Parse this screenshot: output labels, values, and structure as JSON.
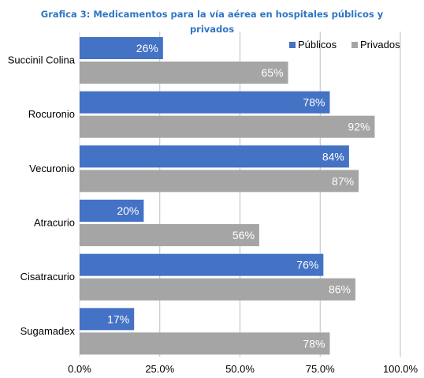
{
  "chart_data": {
    "type": "bar",
    "orientation": "horizontal",
    "title": "Grafica 3: Medicamentos  para la vía aérea en hospitales públicos y privados",
    "categories": [
      "Succinil Colina",
      "Rocuronio",
      "Vecuronio",
      "Atracurio",
      "Cisatracurio",
      "Sugamadex"
    ],
    "series": [
      {
        "name": "Públicos",
        "color": "#4472C4",
        "values": [
          26,
          78,
          84,
          20,
          76,
          17
        ],
        "labels": [
          "26%",
          "78%",
          "84%",
          "20%",
          "76%",
          "17%"
        ]
      },
      {
        "name": "Privados",
        "color": "#A5A5A5",
        "values": [
          65,
          92,
          87,
          56,
          86,
          78
        ],
        "labels": [
          "65%",
          "92%",
          "87%",
          "56%",
          "86%",
          "78%"
        ]
      }
    ],
    "xlim": [
      0,
      100
    ],
    "ticks": [
      0,
      25,
      50,
      75,
      100
    ],
    "tick_labels": [
      "0.0%",
      "25.0%",
      "50.0%",
      "75.0%",
      "100.0%"
    ],
    "grid": "vertical",
    "legend": "top-right",
    "gridline_color": "#BFBFBF",
    "axis_color": "#D9D9D9"
  }
}
